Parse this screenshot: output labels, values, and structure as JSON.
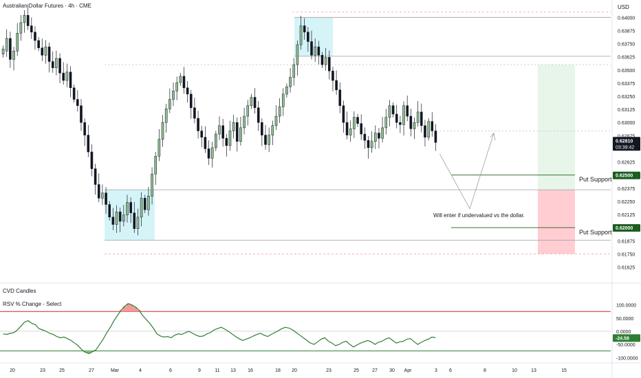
{
  "header": {
    "title": "Australian Dollar Futures · 4h · CME",
    "currency": "USD"
  },
  "indicators": {
    "cvd_label": "CVD Candles",
    "rsv_label": "RSV % Change - Select"
  },
  "annotations": {
    "put_support_upper": "Put Support",
    "put_support_lower": "Put Support",
    "note": "Will enter if undervalued vs the dollar."
  },
  "price_tags": {
    "last_price": "0.62810",
    "countdown": "03:39:42",
    "upper_support": "0.62500",
    "lower_support": "0.62000",
    "rsv_value": "-24.58"
  },
  "colors": {
    "up_candle": "#8fbc8f",
    "down_candle": "#131722",
    "support_line": "#1b5e20",
    "rsv_line": "#2e7d32",
    "upper_band": "#c62828",
    "lower_band": "#2e7d32",
    "zone_blue": "#b2ebf2",
    "zone_green": "#e8f5e9",
    "zone_red": "#ffcdd2"
  },
  "chart_data": [
    {
      "type": "candlestick",
      "title": "Australian Dollar Futures · 4h · CME",
      "ylabel": "USD",
      "ylim": [
        0.6155,
        0.641
      ],
      "y_ticks": [
        "0.64000",
        "0.63875",
        "0.63750",
        "0.63625",
        "0.63500",
        "0.63375",
        "0.63250",
        "0.63125",
        "0.63000",
        "0.62875",
        "0.62625",
        "0.62500",
        "0.62375",
        "0.62250",
        "0.62125",
        "0.62000",
        "0.61875",
        "0.61750",
        "0.61625"
      ],
      "x_ticks": [
        "20",
        "23",
        "25",
        "27",
        "Mar",
        "4",
        "6",
        "9",
        "11",
        "13",
        "16",
        "18",
        "20",
        "23",
        "25",
        "27",
        "30",
        "Apr",
        "3",
        "6",
        "8",
        "10",
        "13",
        "15"
      ],
      "close": [
        0.637,
        0.638,
        0.636,
        0.6368,
        0.6385,
        0.6395,
        0.6402,
        0.6392,
        0.6386,
        0.6378,
        0.6371,
        0.6364,
        0.6372,
        0.6358,
        0.6352,
        0.6361,
        0.6347,
        0.634,
        0.6348,
        0.6333,
        0.6322,
        0.6316,
        0.63,
        0.6288,
        0.6272,
        0.6256,
        0.6241,
        0.6228,
        0.6233,
        0.6222,
        0.621,
        0.6203,
        0.6215,
        0.6206,
        0.6212,
        0.6224,
        0.6214,
        0.6199,
        0.621,
        0.6228,
        0.6217,
        0.623,
        0.6251,
        0.6268,
        0.6284,
        0.63,
        0.6313,
        0.6322,
        0.633,
        0.6338,
        0.6344,
        0.6333,
        0.6327,
        0.6314,
        0.6304,
        0.6292,
        0.6286,
        0.6275,
        0.6266,
        0.6276,
        0.6289,
        0.6297,
        0.6285,
        0.6278,
        0.6292,
        0.63,
        0.6282,
        0.6295,
        0.6306,
        0.6316,
        0.6324,
        0.6314,
        0.63,
        0.6288,
        0.6279,
        0.6288,
        0.6297,
        0.6306,
        0.6315,
        0.6327,
        0.6334,
        0.6343,
        0.6355,
        0.6374,
        0.6392,
        0.6386,
        0.6377,
        0.6364,
        0.6372,
        0.6364,
        0.6355,
        0.6362,
        0.6349,
        0.634,
        0.6331,
        0.6316,
        0.63,
        0.6288,
        0.6294,
        0.6305,
        0.6299,
        0.6289,
        0.6283,
        0.6276,
        0.6282,
        0.629,
        0.6285,
        0.6295,
        0.6305,
        0.6316,
        0.6308,
        0.63,
        0.6298,
        0.6316,
        0.6306,
        0.6294,
        0.63,
        0.631,
        0.6297,
        0.6286,
        0.6301,
        0.6292,
        0.6281
      ],
      "open": [
        0.6365,
        0.6368,
        0.638,
        0.636,
        0.6368,
        0.6385,
        0.6395,
        0.6402,
        0.6392,
        0.6386,
        0.6378,
        0.6371,
        0.6364,
        0.6372,
        0.6358,
        0.6352,
        0.6361,
        0.6347,
        0.634,
        0.6348,
        0.6333,
        0.6322,
        0.6316,
        0.63,
        0.6288,
        0.6272,
        0.6256,
        0.6241,
        0.6228,
        0.6233,
        0.6222,
        0.621,
        0.6203,
        0.6215,
        0.6206,
        0.6212,
        0.6224,
        0.6214,
        0.6199,
        0.621,
        0.6228,
        0.6217,
        0.623,
        0.6251,
        0.6268,
        0.6284,
        0.63,
        0.6313,
        0.6322,
        0.633,
        0.6338,
        0.6344,
        0.6333,
        0.6327,
        0.6314,
        0.6304,
        0.6292,
        0.6286,
        0.6275,
        0.6266,
        0.6276,
        0.6289,
        0.6297,
        0.6285,
        0.6278,
        0.6292,
        0.63,
        0.6282,
        0.6295,
        0.6306,
        0.6316,
        0.6324,
        0.6314,
        0.63,
        0.6288,
        0.6279,
        0.6288,
        0.6297,
        0.6306,
        0.6315,
        0.6327,
        0.6334,
        0.6343,
        0.6355,
        0.6374,
        0.6392,
        0.6386,
        0.6377,
        0.6364,
        0.6372,
        0.6364,
        0.6355,
        0.6362,
        0.6349,
        0.634,
        0.6331,
        0.6316,
        0.63,
        0.6288,
        0.6294,
        0.6305,
        0.6299,
        0.6289,
        0.6283,
        0.6276,
        0.6282,
        0.629,
        0.6285,
        0.6295,
        0.6305,
        0.6316,
        0.6308,
        0.63,
        0.6298,
        0.6316,
        0.6306,
        0.6294,
        0.63,
        0.631,
        0.6297,
        0.6286,
        0.6301,
        0.6292
      ],
      "high_pad": 0.0008,
      "low_pad": 0.0008,
      "levels": [
        0.64,
        0.6363,
        0.6355,
        0.6292,
        0.625,
        0.6236,
        0.62,
        0.6188,
        0.6175,
        0.6405
      ],
      "support_levels": [
        {
          "label": "Put Support",
          "value": 0.625
        },
        {
          "label": "Put Support",
          "value": 0.62
        }
      ],
      "last": 0.6281
    },
    {
      "type": "line",
      "title": "RSV % Change - Select",
      "ylim": [
        -115,
        120
      ],
      "y_ticks": [
        "100.0000",
        "50.0000",
        "0.0000",
        "-50.0000",
        "-100.0000"
      ],
      "bands": [
        75,
        -75
      ],
      "values": [
        -10,
        -12,
        -8,
        -5,
        5,
        20,
        35,
        40,
        30,
        25,
        10,
        5,
        0,
        -8,
        -12,
        -20,
        -25,
        -22,
        -28,
        -35,
        -45,
        -55,
        -70,
        -80,
        -85,
        -78,
        -70,
        -50,
        -30,
        -5,
        15,
        40,
        60,
        80,
        95,
        105,
        100,
        92,
        80,
        60,
        45,
        30,
        12,
        -10,
        -18,
        -22,
        -20,
        -25,
        -15,
        -10,
        -12,
        -5,
        0,
        -8,
        -15,
        -20,
        -18,
        -10,
        -5,
        5,
        10,
        15,
        8,
        0,
        -10,
        -20,
        -28,
        -35,
        -30,
        -25,
        -18,
        -12,
        -8,
        -15,
        -20,
        -12,
        -5,
        2,
        10,
        15,
        12,
        5,
        -5,
        -15,
        -25,
        -35,
        -45,
        -50,
        -40,
        -30,
        -25,
        -38,
        -45,
        -55,
        -50,
        -42,
        -38,
        -50,
        -60,
        -52,
        -45,
        -40,
        -35,
        -40,
        -50,
        -42,
        -38,
        -30,
        -25,
        -35,
        -45,
        -40,
        -38,
        -30,
        -28,
        -40,
        -50,
        -42,
        -35,
        -30,
        -22,
        -24.58
      ],
      "last": -24.58
    }
  ]
}
